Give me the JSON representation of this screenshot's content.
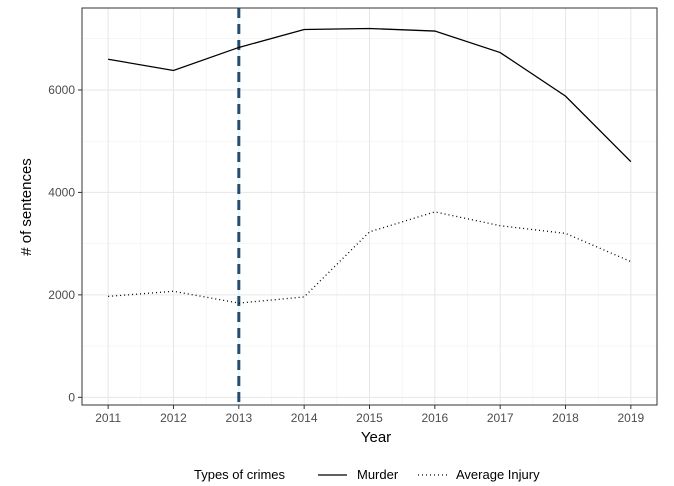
{
  "chart_data": {
    "type": "line",
    "title": "",
    "xlabel": "Year",
    "ylabel": "# of sentences",
    "x": [
      2011,
      2012,
      2013,
      2014,
      2015,
      2016,
      2017,
      2018,
      2019
    ],
    "xlim": [
      2010.6,
      2019.4
    ],
    "ylim": [
      -150,
      7600
    ],
    "y_ticks": [
      0,
      2000,
      4000,
      6000
    ],
    "x_tick_labels": [
      "2011",
      "2012",
      "2013",
      "2014",
      "2015",
      "2016",
      "2017",
      "2018",
      "2019"
    ],
    "y_tick_labels": [
      "0",
      "2000",
      "4000",
      "6000"
    ],
    "grid": true,
    "legend_position": "bottom",
    "legend_title": "Types of crimes",
    "series": [
      {
        "name": "Murder",
        "line_style": "solid",
        "color": "#000000",
        "values": [
          6600,
          6380,
          6830,
          7180,
          7200,
          7150,
          6730,
          5880,
          4600
        ]
      },
      {
        "name": "Average Injury",
        "line_style": "dotted",
        "color": "#000000",
        "values": [
          1970,
          2070,
          1840,
          1960,
          3230,
          3620,
          3350,
          3200,
          2650
        ]
      }
    ],
    "reference_lines": [
      {
        "axis": "x",
        "value": 2013,
        "style": "dashed",
        "color": "#1f4e79"
      }
    ]
  }
}
